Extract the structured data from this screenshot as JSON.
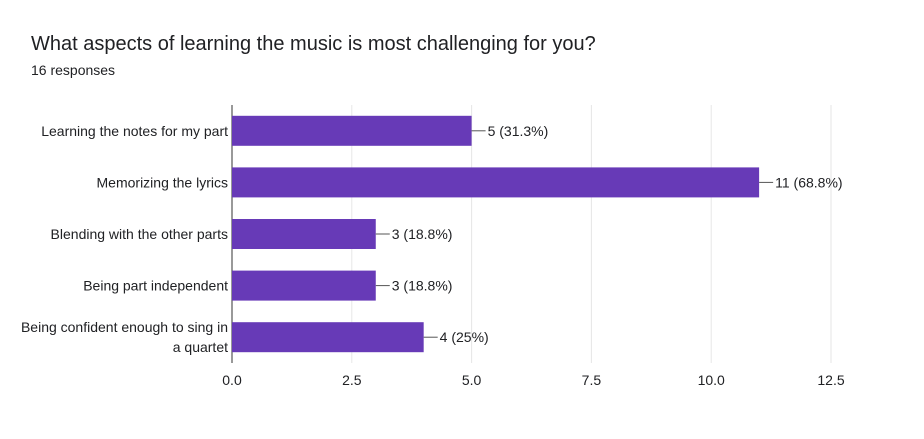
{
  "title": "What aspects of learning the music is most challenging for you?",
  "subtitle": "16 responses",
  "chart_data": {
    "type": "bar",
    "orientation": "horizontal",
    "categories": [
      [
        "Learning the notes for my part"
      ],
      [
        "Memorizing the lyrics"
      ],
      [
        "Blending with the other parts"
      ],
      [
        "Being part independent"
      ],
      [
        "Being confident enough to sing in",
        "a quartet"
      ]
    ],
    "values": [
      5,
      11,
      3,
      3,
      4
    ],
    "data_labels": [
      "5 (31.3%)",
      "11 (68.8%)",
      "3 (18.8%)",
      "3 (18.8%)",
      "4 (25%)"
    ],
    "xlim": [
      0,
      12.5
    ],
    "xticks": [
      0,
      2.5,
      5,
      7.5,
      10,
      12.5
    ],
    "xtick_labels": [
      "0.0",
      "2.5",
      "5.0",
      "7.5",
      "10.0",
      "12.5"
    ],
    "grid": true,
    "bar_color": "#673ab7"
  }
}
